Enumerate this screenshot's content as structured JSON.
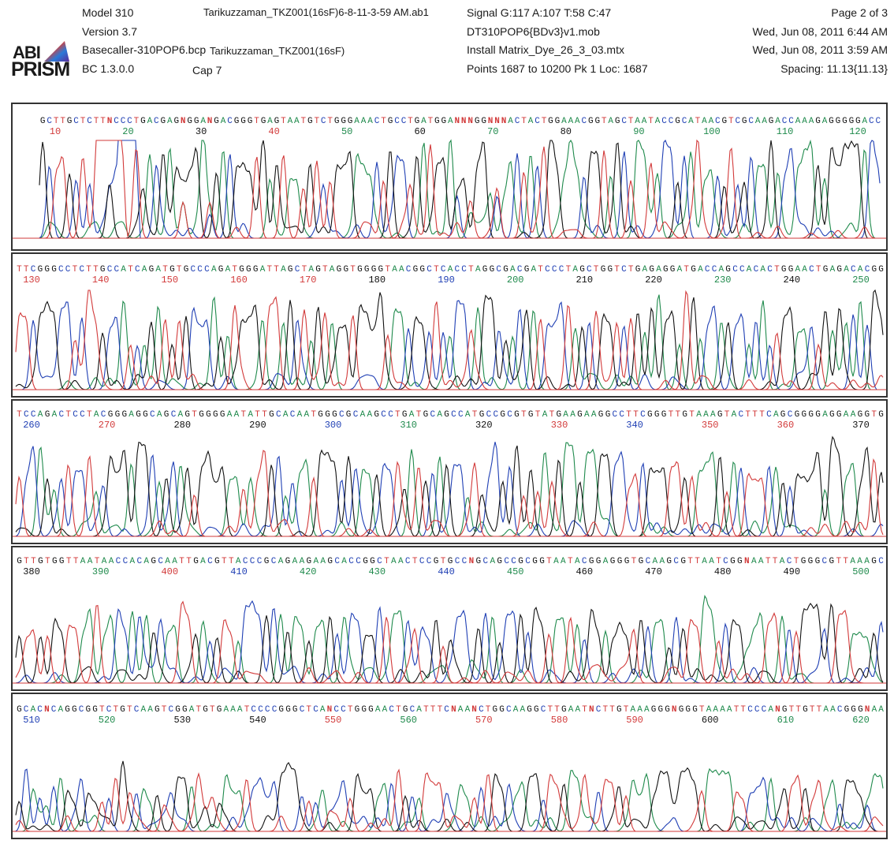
{
  "header": {
    "logo_line1": "ABI",
    "logo_line2": "PRISM",
    "model": "Model  310",
    "version": "Version 3.7",
    "basecaller": "Basecaller-310POP6.bcp",
    "bc_version": "BC 1.3.0.0",
    "file_name": "Tarikuzzaman_TKZ001(16sF)6-8-11-3-59 AM.ab1",
    "sample_name": "Tarikuzzaman_TKZ001(16sF)",
    "capillary": "Cap 7",
    "signal": "Signal G:117 A:107 T:58 C:47",
    "mobility": "DT310POP6{BDv3}v1.mob",
    "matrix": "Install Matrix_Dye_26_3_03.mtx",
    "points": "Points 1687 to 10200   Pk 1 Loc: 1687",
    "page": "Page 2 of 3",
    "printed_date": "Wed, Jun 08, 2011  6:44 AM",
    "run_date": "Wed, Jun 08, 2011  3:59 AM",
    "spacing": "Spacing: 11.13{11.13}"
  },
  "colors": {
    "A": "#1f8a4c",
    "C": "#1f3fb4",
    "G": "#111111",
    "T": "#d23a3a",
    "N": "#d23a3a"
  },
  "chart_data": [
    {
      "type": "line",
      "panel": 1,
      "sequence": "GCTTGCTCTTNCCCTGACGAGNGGANGACGGGTGAGTAATGTCTGGGAAACTGCCTGATGGANNNGGNNNACTACTGGAAACGGTAGCTAATACCGCATAACGTCGCAAGACCAAAGAGGGGGACC",
      "base_positions": [
        10,
        20,
        30,
        40,
        50,
        60,
        70,
        80,
        90,
        100,
        110,
        120
      ],
      "position_colors": [
        "T",
        "A",
        "G",
        "T",
        "A",
        "G",
        "A",
        "G",
        "A",
        "A",
        "A",
        "A"
      ],
      "note_peaks": "traces A,C,G,T"
    },
    {
      "type": "line",
      "panel": 2,
      "sequence": "TTCGGGCCTCTTGCCATCAGATGTGCCCAGATGGGATTAGCTAGTAGGTGGGGTAACGGCTCACCTAGGCGACGATCCCTAGCTGGTCTGAGAGGATGACCAGCCACACTGGAACTGAGACACGG",
      "base_positions": [
        130,
        140,
        150,
        160,
        170,
        180,
        190,
        200,
        210,
        220,
        230,
        240,
        250
      ],
      "position_colors": [
        "T",
        "T",
        "T",
        "T",
        "T",
        "G",
        "C",
        "A",
        "G",
        "G",
        "A",
        "G",
        "A"
      ]
    },
    {
      "type": "line",
      "panel": 3,
      "sequence": "TCCAGACTCCTACGGGAGGCAGCAGTGGGGAATATTGCACAATGGGCGCAAGCCTGATGCAGCCATGCCGCGTGTATGAAGAAGGCCTTCGGGTTGTAAAGTACTTTCAGCGGGGAGGAAGGTG",
      "base_positions": [
        260,
        270,
        280,
        290,
        300,
        310,
        320,
        330,
        340,
        350,
        360,
        370
      ],
      "position_colors": [
        "C",
        "T",
        "G",
        "G",
        "C",
        "A",
        "G",
        "T",
        "C",
        "T",
        "T",
        "G"
      ]
    },
    {
      "type": "line",
      "panel": 4,
      "sequence": "GTTGTGGTTAATAACCACAGCAATTGACGTTACCCGCAGAAGAAGCACCGGCTAACTCCGTGCCNGCAGCCGCGGTAATACGGAGGGTGCAAGCGTTAATCGGNAATTACTGGGCGTTAAAGC",
      "base_positions": [
        380,
        390,
        400,
        410,
        420,
        430,
        440,
        450,
        460,
        470,
        480,
        490,
        500
      ],
      "position_colors": [
        "G",
        "A",
        "T",
        "C",
        "A",
        "A",
        "C",
        "A",
        "G",
        "G",
        "G",
        "G",
        "A"
      ]
    },
    {
      "type": "line",
      "panel": 5,
      "sequence": "GCACNCAGGCGGTCTGTCAAGTCGGATGTGAAATCCCCGGGCTCANCCTGGGAACTGCATTTCNAANCTGGCAAGGCTTGAATNCTTGTAAAGGGNGGGTAAAATTCCCANGTTGTTAACGGGNAA",
      "base_positions": [
        510,
        520,
        530,
        540,
        550,
        560,
        570,
        580,
        590,
        600,
        610,
        620
      ],
      "position_colors": [
        "C",
        "A",
        "G",
        "G",
        "T",
        "A",
        "T",
        "T",
        "T",
        "G",
        "A",
        "A"
      ]
    }
  ]
}
